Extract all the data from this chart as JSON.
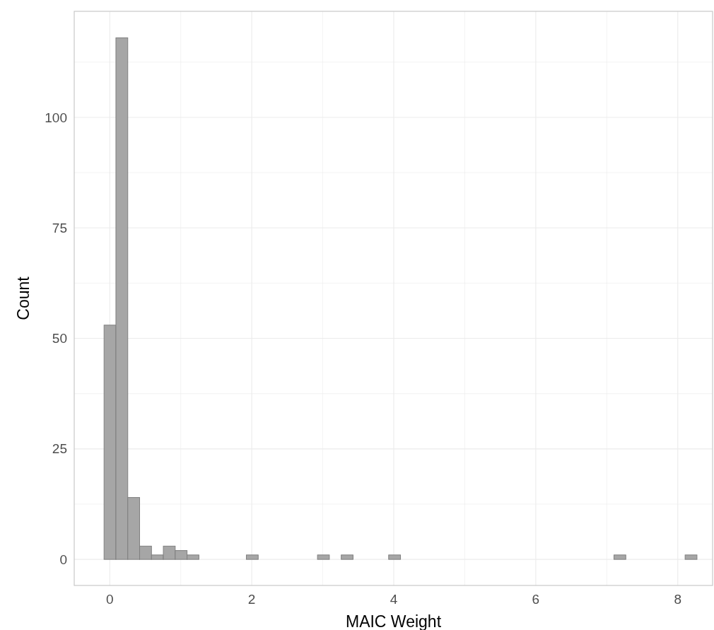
{
  "chart_data": {
    "type": "histogram",
    "xlabel": "MAIC Weight",
    "ylabel": "Count",
    "color": "#a6a6a6",
    "bins": [
      -0.08,
      0.087,
      0.254,
      0.421,
      0.588,
      0.755,
      0.922,
      1.089,
      1.256,
      1.423,
      1.59,
      1.757,
      1.924,
      2.091,
      2.258,
      2.425,
      2.592,
      2.759,
      2.926,
      3.093,
      3.26,
      3.427,
      3.594,
      3.761,
      3.928,
      4.095,
      4.262,
      4.429,
      4.596,
      4.763,
      4.93,
      5.097,
      5.264,
      5.431,
      5.598,
      5.765,
      5.932,
      6.099,
      6.266,
      6.433,
      6.6,
      6.767,
      6.934,
      7.101,
      7.268,
      7.435,
      7.602,
      7.769,
      7.936,
      8.103,
      8.27
    ],
    "values": [
      53,
      118,
      14,
      3,
      1,
      3,
      2,
      1,
      0,
      0,
      0,
      0,
      1,
      0,
      0,
      0,
      0,
      0,
      1,
      0,
      1,
      0,
      0,
      0,
      1,
      0,
      0,
      0,
      0,
      0,
      0,
      0,
      0,
      0,
      0,
      0,
      0,
      0,
      0,
      0,
      0,
      0,
      0,
      1,
      0,
      0,
      0,
      0,
      0,
      1
    ],
    "xlim": [
      -0.5,
      8.49
    ],
    "ylim": [
      -5.9,
      124
    ],
    "xticks": [
      0,
      {
        "value": 1,
        "label": null
      },
      2,
      {
        "value": 3,
        "label": null
      },
      4,
      {
        "value": 5,
        "label": null
      },
      6,
      {
        "value": 7,
        "label": null
      },
      8
    ],
    "yticks": [
      0,
      {
        "value": 12.5,
        "label": null
      },
      25,
      {
        "value": 37.5,
        "label": null
      },
      50,
      {
        "value": 62.5,
        "label": null
      },
      75,
      {
        "value": 87.5,
        "label": null
      },
      100,
      {
        "value": 112.5,
        "label": null
      }
    ],
    "grid": true
  }
}
